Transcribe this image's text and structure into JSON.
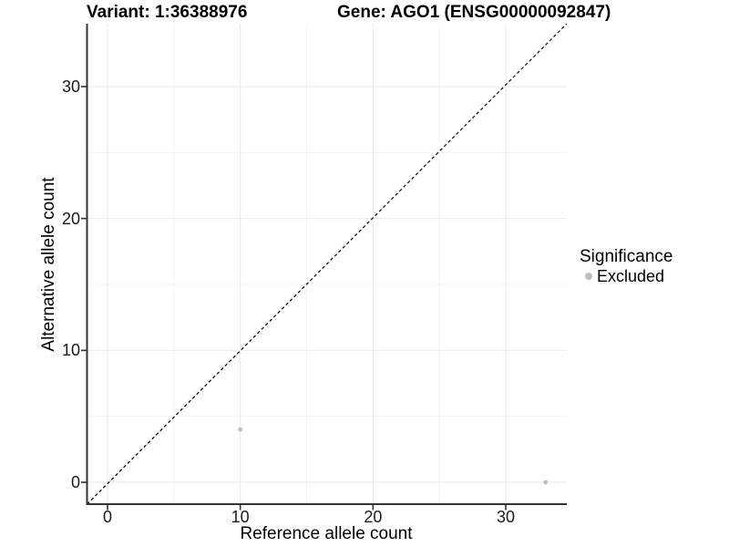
{
  "titles": {
    "variant": "Variant: 1:36388976",
    "gene": "Gene: AGO1 (ENSG00000092847)"
  },
  "chart_data": {
    "type": "scatter",
    "titles": [
      "Variant: 1:36388976",
      "Gene: AGO1 (ENSG00000092847)"
    ],
    "xlabel": "Reference allele count",
    "ylabel": "Alternative allele count",
    "x_ticks": [
      0,
      10,
      20,
      30
    ],
    "y_ticks": [
      0,
      10,
      20,
      30
    ],
    "x_minor": [
      5,
      15,
      25
    ],
    "y_minor": [
      5,
      15,
      25
    ],
    "xlim": [
      -1.65,
      34.65
    ],
    "ylim": [
      -1.66,
      34.85
    ],
    "grid": true,
    "identity_line": {
      "style": "dashed",
      "slope": 1,
      "intercept": 0
    },
    "series": [
      {
        "name": "Excluded",
        "color": "#bebebe",
        "points": [
          {
            "x": 10,
            "y": 4
          },
          {
            "x": 33,
            "y": 0
          }
        ]
      }
    ],
    "legend": {
      "title": "Significance",
      "position": "right",
      "entries": [
        {
          "label": "Excluded",
          "color": "#bebebe"
        }
      ]
    }
  },
  "colors": {
    "background": "#ffffff",
    "grid_major": "#e9e9e9",
    "grid_minor": "#f4f4f4",
    "axis_line": "#333333",
    "tick_mark": "#333333",
    "tick_text": "#1a1a1a",
    "point": "#bebebe",
    "identity_line": "#000000"
  }
}
